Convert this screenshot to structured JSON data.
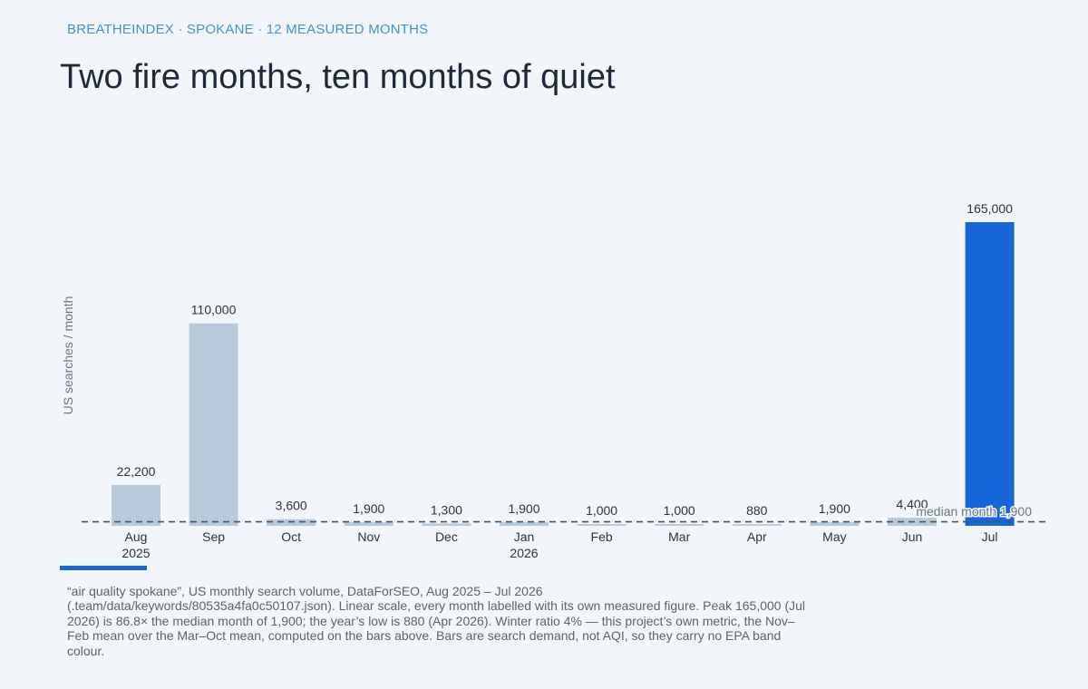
{
  "kicker": "BREATHEINDEX · SPOKANE · 12 MEASURED MONTHS",
  "title": "Two fire months, ten months of quiet",
  "caption": "“air quality spokane”, US monthly search volume, DataForSEO, Aug 2025 – Jul 2026 (.team/data/keywords/80535a4fa0c50107.json). Linear scale, every month labelled with its own measured figure. Peak 165,000 (Jul 2026) is 86.8× the median month of 1,900; the year’s low is 880 (Apr 2026). Winter ratio 4% — this project’s own metric, the Nov–Feb mean over the Mar–Oct mean, computed on the bars above. Bars are search demand, not AQI, so they carry no EPA band colour.",
  "colors": {
    "bar": "#b8c9db",
    "highlight": "#1766d8",
    "label": "#2a3442",
    "axis_text": "#6b7684",
    "reference": "#4a5462"
  },
  "chart_data": {
    "type": "bar",
    "title": "Two fire months, ten months of quiet",
    "ylabel": "US searches / month",
    "xlabel": "",
    "ylim": [
      0,
      165000
    ],
    "grid": false,
    "categories": [
      {
        "month": "Aug",
        "year": "2025"
      },
      {
        "month": "Sep",
        "year": ""
      },
      {
        "month": "Oct",
        "year": ""
      },
      {
        "month": "Nov",
        "year": ""
      },
      {
        "month": "Dec",
        "year": ""
      },
      {
        "month": "Jan",
        "year": "2026"
      },
      {
        "month": "Feb",
        "year": ""
      },
      {
        "month": "Mar",
        "year": ""
      },
      {
        "month": "Apr",
        "year": ""
      },
      {
        "month": "May",
        "year": ""
      },
      {
        "month": "Jun",
        "year": ""
      },
      {
        "month": "Jul",
        "year": ""
      }
    ],
    "values": [
      22200,
      110000,
      3600,
      1900,
      1300,
      1900,
      1000,
      1000,
      880,
      1900,
      4400,
      165000
    ],
    "value_labels": [
      "22,200",
      "110,000",
      "3,600",
      "1,900",
      "1,300",
      "1,900",
      "1,000",
      "1,000",
      "880",
      "1,900",
      "4,400",
      "165,000"
    ],
    "highlight_index": 11,
    "reference_line": {
      "label": "median month",
      "value": 1900,
      "value_label": "1,900"
    }
  }
}
